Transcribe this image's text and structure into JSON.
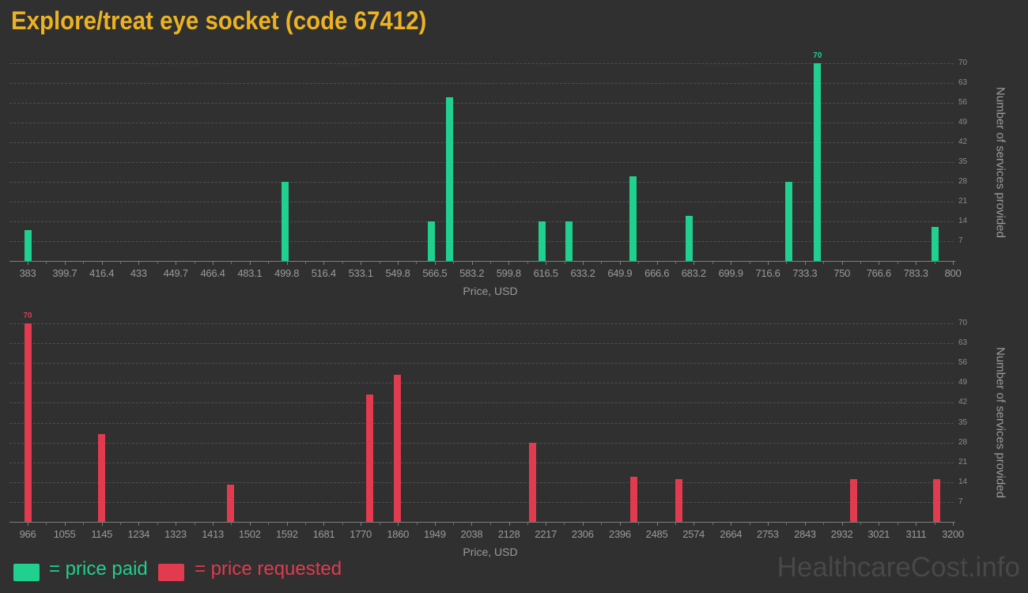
{
  "title": "Explore/treat eye socket (code 67412)",
  "watermark": "HealthcareCost.info",
  "legend": {
    "paid_label": "= price paid",
    "requested_label": "= price requested"
  },
  "colors": {
    "background": "#303030",
    "title": "#ecb220",
    "paid": "#1fd08e",
    "requested": "#e23a4e",
    "gridline": "#4e4e4e",
    "axis_line": "#7e7e7e",
    "tick_label": "#9a9a9a",
    "ytick_label": "#8b8b8b",
    "watermark": "#484848"
  },
  "chart_data": [
    {
      "type": "bar",
      "name": "price paid",
      "color": "#1fd08e",
      "xlabel": "Price, USD",
      "ylabel": "Number of services provided",
      "xlim": [
        383,
        800
      ],
      "ylim": [
        0,
        70
      ],
      "grid": true,
      "legend_position": "bottom",
      "x_ticks": [
        "383",
        "399.7",
        "416.4",
        "433",
        "449.7",
        "466.4",
        "483.1",
        "499.8",
        "516.4",
        "533.1",
        "549.8",
        "566.5",
        "583.2",
        "599.8",
        "616.5",
        "633.2",
        "649.9",
        "666.6",
        "683.2",
        "699.9",
        "716.6",
        "733.3",
        "750",
        "766.6",
        "783.3",
        "800"
      ],
      "y_ticks": [
        7,
        14,
        21,
        28,
        35,
        42,
        49,
        56,
        63,
        70
      ],
      "points": [
        {
          "x": 383,
          "y": 11
        },
        {
          "x": 499,
          "y": 28
        },
        {
          "x": 565,
          "y": 14
        },
        {
          "x": 573,
          "y": 58
        },
        {
          "x": 615,
          "y": 14
        },
        {
          "x": 627,
          "y": 14
        },
        {
          "x": 656,
          "y": 30
        },
        {
          "x": 681,
          "y": 16
        },
        {
          "x": 726,
          "y": 28
        },
        {
          "x": 739,
          "y": 70,
          "label": "70"
        },
        {
          "x": 792,
          "y": 12
        }
      ]
    },
    {
      "type": "bar",
      "name": "price requested",
      "color": "#e23a4e",
      "xlabel": "Price, USD",
      "ylabel": "Number of services provided",
      "xlim": [
        966,
        3200
      ],
      "ylim": [
        0,
        70
      ],
      "grid": true,
      "legend_position": "bottom",
      "x_ticks": [
        "966",
        "1055",
        "1145",
        "1234",
        "1323",
        "1413",
        "1502",
        "1592",
        "1681",
        "1770",
        "1860",
        "1949",
        "2038",
        "2128",
        "2217",
        "2306",
        "2396",
        "2485",
        "2574",
        "2664",
        "2753",
        "2843",
        "2932",
        "3021",
        "3111",
        "3200"
      ],
      "y_ticks": [
        7,
        14,
        21,
        28,
        35,
        42,
        49,
        56,
        63,
        70
      ],
      "points": [
        {
          "x": 966,
          "y": 70,
          "label": "70"
        },
        {
          "x": 1145,
          "y": 31
        },
        {
          "x": 1455,
          "y": 13
        },
        {
          "x": 1791,
          "y": 45
        },
        {
          "x": 1858,
          "y": 52
        },
        {
          "x": 2186,
          "y": 28
        },
        {
          "x": 2429,
          "y": 16
        },
        {
          "x": 2539,
          "y": 15
        },
        {
          "x": 2961,
          "y": 15
        },
        {
          "x": 3160,
          "y": 15
        }
      ]
    }
  ]
}
